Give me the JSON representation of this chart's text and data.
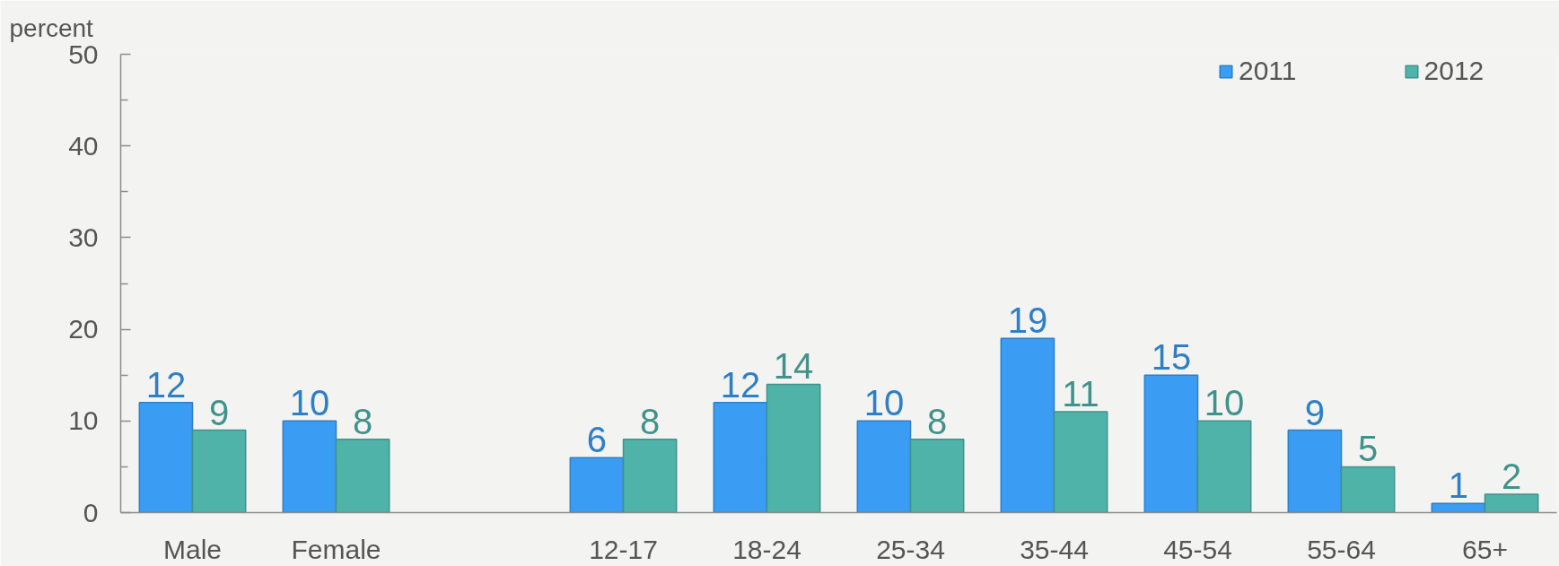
{
  "chart_data": {
    "type": "bar",
    "ylabel": "percent",
    "categories": [
      "Male",
      "Female",
      null,
      "12-17",
      "18-24",
      "25-34",
      "35-44",
      "45-54",
      "55-64",
      "65+"
    ],
    "series": [
      {
        "name": "2011",
        "color": "#3a9cf2",
        "values": [
          12,
          10,
          null,
          6,
          12,
          10,
          19,
          15,
          9,
          1
        ]
      },
      {
        "name": "2012",
        "color": "#4fb3aa",
        "values": [
          9,
          8,
          null,
          8,
          14,
          8,
          11,
          10,
          5,
          2
        ]
      }
    ],
    "ylim": [
      0,
      50
    ],
    "yticks": [
      0,
      {
        "value": 5,
        "label": null
      },
      10,
      {
        "value": 15,
        "label": null
      },
      20,
      {
        "value": 25,
        "label": null
      },
      30,
      {
        "value": 35,
        "label": null
      },
      40,
      {
        "value": 45,
        "label": null
      },
      50
    ],
    "data_labels": true,
    "legend": "top right",
    "grid": false
  }
}
